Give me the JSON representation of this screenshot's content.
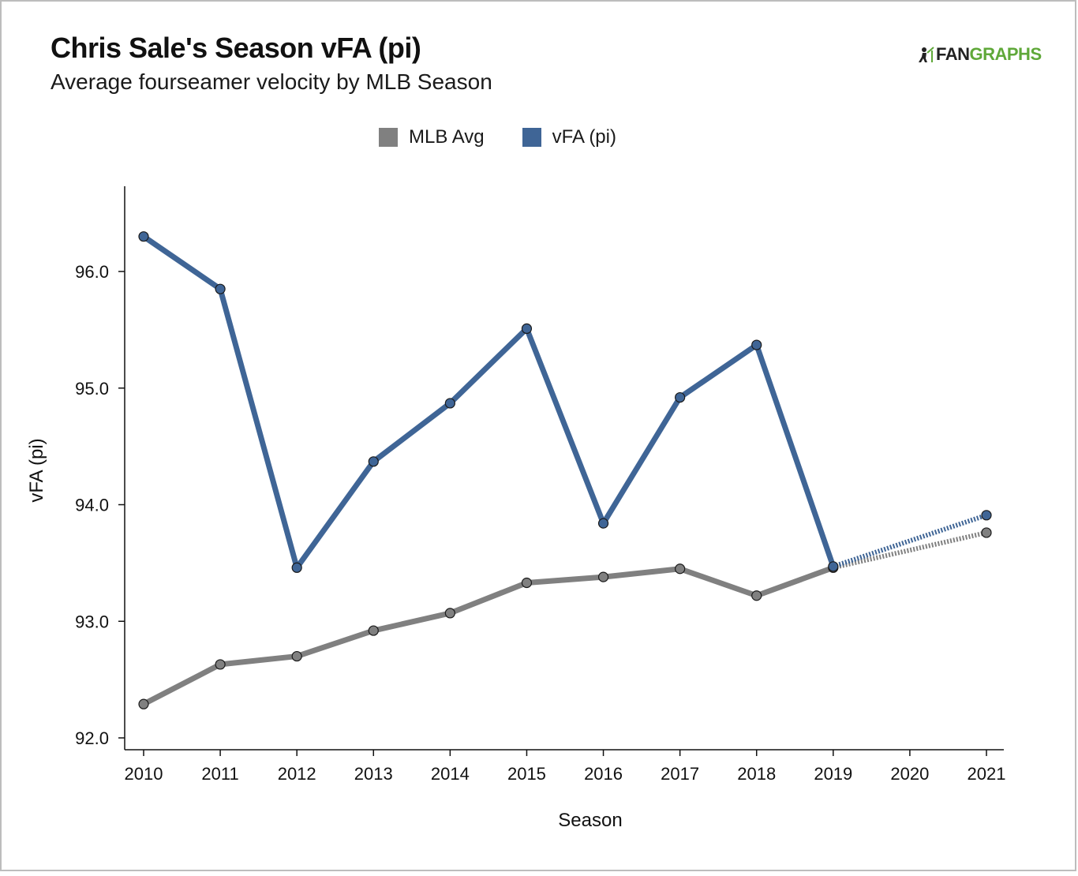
{
  "header": {
    "title": "Chris Sale's Season vFA (pi)",
    "subtitle": "Average fourseamer velocity by MLB Season",
    "logo_left": "FAN",
    "logo_right": "GRAPHS"
  },
  "colors": {
    "mlb_avg": "#808080",
    "player": "#3f6596",
    "axis": "#111111"
  },
  "chart_data": {
    "type": "line",
    "xlabel": "Season",
    "ylabel": "vFA (pi)",
    "x": [
      2010,
      2011,
      2012,
      2013,
      2014,
      2015,
      2016,
      2017,
      2018,
      2019,
      2020,
      2021
    ],
    "xlim": [
      2010,
      2021
    ],
    "ylim": [
      91.9,
      96.7
    ],
    "yticks": [
      92.0,
      93.0,
      94.0,
      95.0,
      96.0
    ],
    "ytick_labels": [
      "92.0",
      "93.0",
      "94.0",
      "95.0",
      "96.0"
    ],
    "xtick_labels": [
      "2010",
      "2011",
      "2012",
      "2013",
      "2014",
      "2015",
      "2016",
      "2017",
      "2018",
      "2019",
      "2020",
      "2021"
    ],
    "legend_position": "top-center",
    "series": [
      {
        "name": "MLB Avg",
        "color": "#808080",
        "points": [
          {
            "x": 2010,
            "y": 92.29
          },
          {
            "x": 2011,
            "y": 92.63
          },
          {
            "x": 2012,
            "y": 92.7
          },
          {
            "x": 2013,
            "y": 92.92
          },
          {
            "x": 2014,
            "y": 93.07
          },
          {
            "x": 2015,
            "y": 93.33
          },
          {
            "x": 2016,
            "y": 93.38
          },
          {
            "x": 2017,
            "y": 93.45
          },
          {
            "x": 2018,
            "y": 93.22
          },
          {
            "x": 2019,
            "y": 93.46
          },
          {
            "x": 2021,
            "y": 93.76
          }
        ],
        "dotted_from": 2019
      },
      {
        "name": "vFA (pi)",
        "color": "#3f6596",
        "points": [
          {
            "x": 2010,
            "y": 96.3
          },
          {
            "x": 2011,
            "y": 95.85
          },
          {
            "x": 2012,
            "y": 93.46
          },
          {
            "x": 2013,
            "y": 94.37
          },
          {
            "x": 2014,
            "y": 94.87
          },
          {
            "x": 2015,
            "y": 95.51
          },
          {
            "x": 2016,
            "y": 93.84
          },
          {
            "x": 2017,
            "y": 94.92
          },
          {
            "x": 2018,
            "y": 95.37
          },
          {
            "x": 2019,
            "y": 93.47
          },
          {
            "x": 2021,
            "y": 93.91
          }
        ],
        "dotted_from": 2019
      }
    ]
  }
}
